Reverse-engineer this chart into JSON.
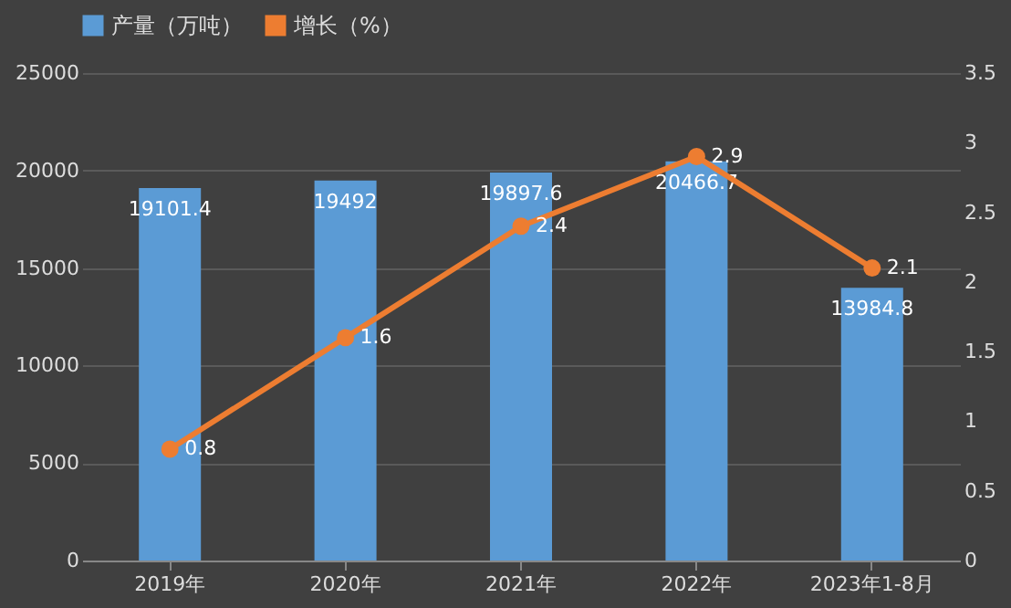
{
  "chart_data": {
    "type": "bar",
    "categories": [
      "2019年",
      "2020年",
      "2021年",
      "2022年",
      "2023年1-8月"
    ],
    "series": [
      {
        "name": "产量（万吨）",
        "color": "#5b9bd5",
        "values": [
          19101.4,
          19492,
          19897.6,
          20466.7,
          13984.8
        ]
      },
      {
        "name": "增长（%）",
        "type": "line",
        "axis": "y2",
        "color": "#ed7d31",
        "values": [
          0.8,
          1.6,
          2.4,
          2.9,
          2.1
        ],
        "marker": "circle"
      }
    ],
    "ylim": [
      0,
      25000
    ],
    "yticks": [
      0,
      5000,
      10000,
      15000,
      20000,
      25000
    ],
    "y2lim": [
      0,
      3.5
    ],
    "y2ticks": [
      0,
      0.5,
      1,
      1.5,
      2,
      2.5,
      3,
      3.5
    ],
    "grid": "y",
    "legend": "top",
    "data_labels": true
  }
}
